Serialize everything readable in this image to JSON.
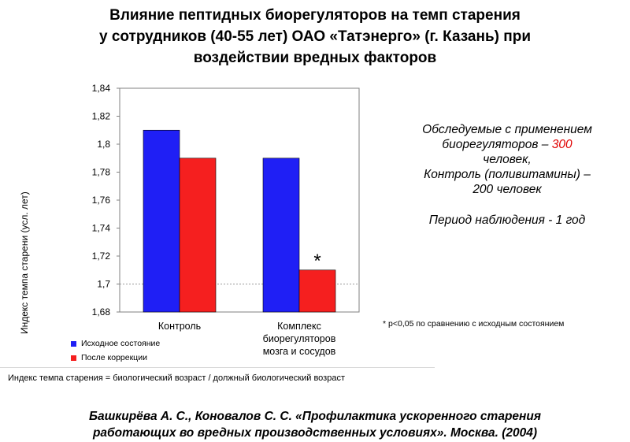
{
  "title": {
    "line1": "Влияние пептидных биорегуляторов на темп старения",
    "line2": "у сотрудников (40-55 лет) ОАО «Татэнерго» (г. Казань) при",
    "line3": "воздействии вредных факторов"
  },
  "chart_data": {
    "type": "bar",
    "ylabel": "Индекс темпа старени (усл. лет)",
    "ylim": [
      1.68,
      1.84
    ],
    "yticks": [
      "1,68",
      "1,7",
      "1,72",
      "1,74",
      "1,76",
      "1,78",
      "1,8",
      "1,82",
      "1,84"
    ],
    "categories": [
      [
        "Контроль"
      ],
      [
        "Комплекс",
        "биорегуляторов",
        "мозга и сосудов"
      ]
    ],
    "series": [
      {
        "name": "Исходное состояние",
        "color": "#1f1ff5",
        "values": [
          1.81,
          1.79
        ]
      },
      {
        "name": "После коррекции",
        "color": "#f51f1f",
        "values": [
          1.79,
          1.71
        ]
      }
    ],
    "annotation": "*",
    "grid": false,
    "legend": "bottom-left"
  },
  "info": {
    "l1": "Обследуемые с применением",
    "l2a": "биорегуляторов – ",
    "l2b": "300",
    "l3": "человек,",
    "l4": "Контроль (поливитамины) –",
    "l5": "200 человек",
    "l6": "Период наблюдения -  1 год"
  },
  "pnote": "* р<0,05 по сравнению с исходным состоянием",
  "formula": "Индекс темпа старения = биологический возраст / должный биологический возраст",
  "reference": {
    "line1": "Башкирёва А. С., Коновалов С. С. «Профилактика ускоренного старения",
    "line2": "работающих во вредных производственных условиях». Москва. (2004)"
  }
}
